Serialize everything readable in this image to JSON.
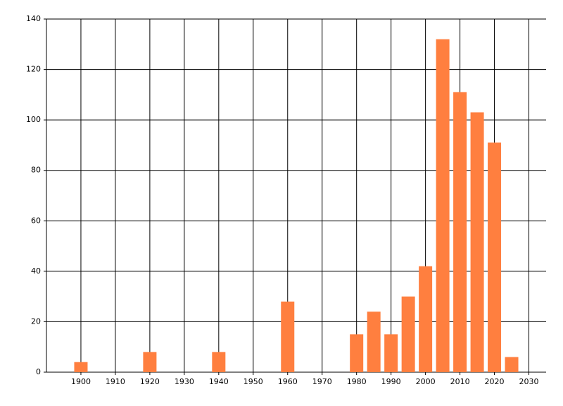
{
  "chart_data": {
    "type": "bar",
    "x": [
      1900,
      1920,
      1940,
      1960,
      1980,
      1985,
      1990,
      1995,
      2000,
      2005,
      2010,
      2015,
      2020,
      2025
    ],
    "values": [
      4,
      8,
      8,
      28,
      15,
      24,
      15,
      30,
      42,
      132,
      111,
      103,
      91,
      6
    ],
    "color": "#ff7f3f",
    "xlim": [
      1890,
      2035
    ],
    "xticks": [
      1900,
      1910,
      1920,
      1930,
      1940,
      1950,
      1960,
      1970,
      1980,
      1990,
      2000,
      2010,
      2020,
      2030
    ],
    "ylim": [
      0,
      140
    ],
    "yticks": [
      0,
      20,
      40,
      60,
      80,
      100,
      120,
      140
    ],
    "grid": true
  }
}
